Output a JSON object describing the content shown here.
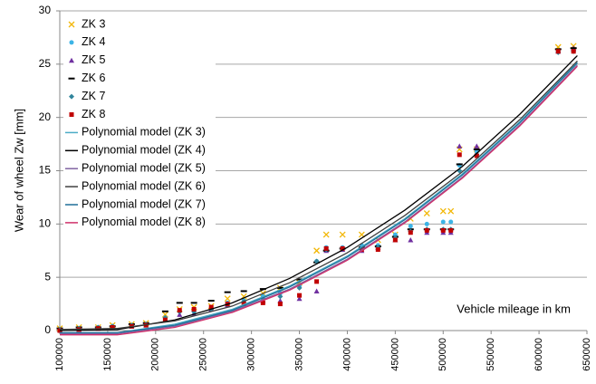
{
  "chart_data": {
    "type": "scatter",
    "y_label": "Wear of wheel Zw [mm]",
    "annotation": "Vehicle mileage in km",
    "xlim": [
      100000,
      650000
    ],
    "xticks": [
      100000,
      150000,
      200000,
      250000,
      300000,
      350000,
      400000,
      450000,
      500000,
      550000,
      600000,
      650000
    ],
    "ylim": [
      0,
      30
    ],
    "yticks": [
      0,
      5,
      10,
      15,
      20,
      25,
      30
    ],
    "grid": true,
    "legend": "upper left",
    "x": [
      100000,
      120000,
      140000,
      155000,
      175000,
      190000,
      210000,
      225000,
      240000,
      258000,
      275000,
      292000,
      312000,
      330000,
      350000,
      368000,
      378000,
      395000,
      415000,
      432000,
      450000,
      466000,
      483000,
      500000,
      508000,
      517000,
      535000,
      620000,
      636000
    ],
    "series": [
      {
        "name": "ZK 3",
        "color": "#f2b705",
        "marker": "x",
        "values": [
          0.2,
          0.3,
          0.3,
          0.5,
          0.6,
          0.7,
          1.5,
          2.0,
          2.2,
          2.3,
          3.0,
          3.2,
          3.5,
          4.0,
          4.5,
          7.5,
          9.0,
          9.0,
          9.0,
          8.5,
          9.0,
          10.5,
          11.0,
          11.2,
          11.2,
          17.0,
          17.0,
          26.6,
          26.7
        ]
      },
      {
        "name": "ZK 4",
        "color": "#3cb4e6",
        "marker": "circle",
        "values": [
          0.1,
          0.2,
          0.3,
          0.4,
          0.5,
          0.6,
          1.2,
          1.8,
          1.8,
          2.0,
          2.6,
          2.8,
          3.2,
          3.5,
          4.2,
          6.5,
          7.8,
          7.8,
          8.0,
          8.0,
          9.0,
          9.8,
          10.0,
          10.2,
          10.2,
          15.5,
          16.8,
          26.2,
          26.3
        ]
      },
      {
        "name": "ZK 5",
        "color": "#7030a0",
        "marker": "triangle",
        "values": [
          0.1,
          0.1,
          0.2,
          0.3,
          0.4,
          0.5,
          1.0,
          1.5,
          1.6,
          2.0,
          2.4,
          2.5,
          2.8,
          2.8,
          3.0,
          3.7,
          7.5,
          7.6,
          7.5,
          7.8,
          8.5,
          8.5,
          9.2,
          9.2,
          9.2,
          17.3,
          17.3,
          26.2,
          26.5
        ]
      },
      {
        "name": "ZK 6",
        "color": "#000000",
        "marker": "dash",
        "values": [
          0.2,
          0.3,
          0.3,
          0.4,
          0.6,
          0.7,
          1.8,
          2.6,
          2.6,
          2.8,
          3.6,
          3.7,
          3.9,
          4.0,
          4.8,
          6.4,
          7.5,
          7.7,
          7.8,
          7.9,
          8.8,
          9.5,
          9.5,
          9.5,
          9.5,
          15.6,
          17.0,
          26.4,
          26.5
        ]
      },
      {
        "name": "ZK 7",
        "color": "#31859c",
        "marker": "diamond",
        "values": [
          0.1,
          0.2,
          0.3,
          0.4,
          0.5,
          0.6,
          1.2,
          1.8,
          1.8,
          2.0,
          2.5,
          2.7,
          3.0,
          3.2,
          4.0,
          6.5,
          7.6,
          7.7,
          7.7,
          7.8,
          8.7,
          9.3,
          9.5,
          9.5,
          9.5,
          15.0,
          16.5,
          26.1,
          26.2
        ]
      },
      {
        "name": "ZK 8",
        "color": "#c00000",
        "marker": "square",
        "values": [
          0.0,
          0.1,
          0.2,
          0.3,
          0.4,
          0.5,
          1.0,
          1.9,
          2.0,
          2.2,
          2.5,
          2.5,
          2.6,
          2.5,
          3.3,
          4.6,
          7.7,
          7.7,
          7.6,
          7.6,
          8.5,
          9.2,
          9.4,
          9.4,
          9.4,
          16.5,
          16.4,
          26.2,
          26.2
        ]
      },
      {
        "name": "Polynomial model (ZK 3)",
        "color": "#4bacc6",
        "marker": "line",
        "x": [
          100000,
          160000,
          220000,
          280000,
          340000,
          400000,
          460000,
          520000,
          580000,
          640000
        ],
        "values": [
          -0.2,
          -0.2,
          0.6,
          2.0,
          4.2,
          7.0,
          10.5,
          14.7,
          19.6,
          25.2
        ]
      },
      {
        "name": "Polynomial model (ZK 4)",
        "color": "#000000",
        "marker": "line",
        "x": [
          100000,
          160000,
          220000,
          280000,
          340000,
          400000,
          460000,
          520000,
          580000,
          640000
        ],
        "values": [
          0.0,
          0.1,
          1.0,
          2.6,
          4.9,
          7.8,
          11.3,
          15.4,
          20.3,
          25.8
        ]
      },
      {
        "name": "Polynomial model (ZK 5)",
        "color": "#8064a2",
        "marker": "line",
        "x": [
          100000,
          160000,
          220000,
          280000,
          340000,
          400000,
          460000,
          520000,
          580000,
          640000
        ],
        "values": [
          -0.3,
          -0.3,
          0.4,
          1.8,
          3.9,
          6.7,
          10.2,
          14.4,
          19.3,
          24.9
        ]
      },
      {
        "name": "Polynomial model (ZK 6)",
        "color": "#404040",
        "marker": "line",
        "x": [
          100000,
          160000,
          220000,
          280000,
          340000,
          400000,
          460000,
          520000,
          580000,
          640000
        ],
        "values": [
          0.1,
          0.2,
          0.9,
          2.3,
          4.5,
          7.3,
          10.8,
          14.9,
          19.8,
          25.3
        ]
      },
      {
        "name": "Polynomial model (ZK 7)",
        "color": "#1f6f99",
        "marker": "line",
        "x": [
          100000,
          160000,
          220000,
          280000,
          340000,
          400000,
          460000,
          520000,
          580000,
          640000
        ],
        "values": [
          -0.2,
          -0.2,
          0.5,
          1.9,
          4.1,
          6.9,
          10.4,
          14.6,
          19.5,
          25.1
        ]
      },
      {
        "name": "Polynomial model (ZK 8)",
        "color": "#d0306a",
        "marker": "line",
        "x": [
          100000,
          160000,
          220000,
          280000,
          340000,
          400000,
          460000,
          520000,
          580000,
          640000
        ],
        "values": [
          -0.4,
          -0.4,
          0.3,
          1.7,
          3.8,
          6.6,
          10.1,
          14.3,
          19.2,
          24.8
        ]
      }
    ]
  }
}
